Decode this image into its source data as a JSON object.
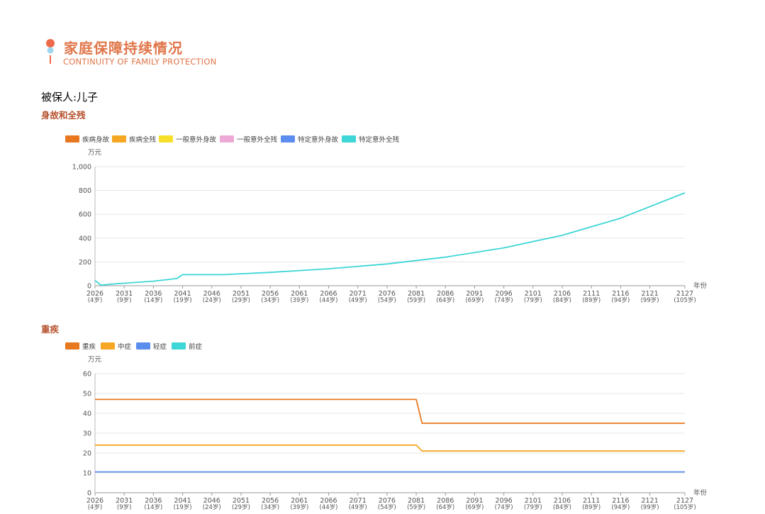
{
  "header": {
    "title_cn": "家庭保障持续情况",
    "title_en": "CONTINUITY OF FAMILY PROTECTION"
  },
  "insured_label": "被保人:儿子",
  "colors": {
    "accent": "#e0764a",
    "section": "#b5502b"
  },
  "chart_data": [
    {
      "type": "line",
      "section_title": "身故和全残",
      "ylabel": "万元",
      "xlabel": "年份",
      "ylim": [
        0,
        1000
      ],
      "yticks": [
        "0",
        "200",
        "400",
        "600",
        "800",
        "1,000"
      ],
      "ytick_values": [
        0,
        200,
        400,
        600,
        800,
        1000
      ],
      "legend_position": "top-left",
      "x_years": [
        2026,
        2031,
        2036,
        2041,
        2046,
        2051,
        2056,
        2061,
        2066,
        2071,
        2076,
        2081,
        2086,
        2091,
        2096,
        2101,
        2106,
        2111,
        2116,
        2121,
        2127
      ],
      "x_ticks": [
        {
          "year": "2026",
          "age": "(4岁)"
        },
        {
          "year": "2031",
          "age": "(9岁)"
        },
        {
          "year": "2036",
          "age": "(14岁)"
        },
        {
          "year": "2041",
          "age": "(19岁)"
        },
        {
          "year": "2046",
          "age": "(24岁)"
        },
        {
          "year": "2051",
          "age": "(29岁)"
        },
        {
          "year": "2056",
          "age": "(34岁)"
        },
        {
          "year": "2061",
          "age": "(39岁)"
        },
        {
          "year": "2066",
          "age": "(44岁)"
        },
        {
          "year": "2071",
          "age": "(49岁)"
        },
        {
          "year": "2076",
          "age": "(54岁)"
        },
        {
          "year": "2081",
          "age": "(59岁)"
        },
        {
          "year": "2086",
          "age": "(64岁)"
        },
        {
          "year": "2091",
          "age": "(69岁)"
        },
        {
          "year": "2096",
          "age": "(74岁)"
        },
        {
          "year": "2101",
          "age": "(79岁)"
        },
        {
          "year": "2106",
          "age": "(84岁)"
        },
        {
          "year": "2111",
          "age": "(89岁)"
        },
        {
          "year": "2116",
          "age": "(94岁)"
        },
        {
          "year": "2121",
          "age": "(99岁)"
        },
        {
          "year": "2127",
          "age": "(105岁)"
        }
      ],
      "series": [
        {
          "name": "疾病身故",
          "color": "#e8781f",
          "points": []
        },
        {
          "name": "疾病全残",
          "color": "#f5a623",
          "points": []
        },
        {
          "name": "一般意外身故",
          "color": "#f8e02a",
          "points": []
        },
        {
          "name": "一般意外全残",
          "color": "#eeaad6",
          "points": []
        },
        {
          "name": "特定意外身故",
          "color": "#5b8def",
          "points": []
        },
        {
          "name": "特定意外全残",
          "color": "#3ed6d6",
          "points": [
            [
              2026,
              45
            ],
            [
              2027,
              5
            ],
            [
              2030,
              18
            ],
            [
              2036,
              38
            ],
            [
              2040,
              60
            ],
            [
              2041,
              93
            ],
            [
              2046,
              93
            ],
            [
              2048,
              93
            ],
            [
              2056,
              112
            ],
            [
              2066,
              142
            ],
            [
              2076,
              183
            ],
            [
              2086,
              240
            ],
            [
              2096,
              318
            ],
            [
              2106,
              423
            ],
            [
              2116,
              567
            ],
            [
              2127,
              780
            ]
          ]
        }
      ]
    },
    {
      "type": "line",
      "section_title": "重疾",
      "ylabel": "万元",
      "xlabel": "年份",
      "ylim": [
        0,
        60
      ],
      "yticks": [
        "0",
        "10",
        "20",
        "30",
        "40",
        "50",
        "60"
      ],
      "ytick_values": [
        0,
        10,
        20,
        30,
        40,
        50,
        60
      ],
      "legend_position": "top-left",
      "x_years": [
        2026,
        2031,
        2036,
        2041,
        2046,
        2051,
        2056,
        2061,
        2066,
        2071,
        2076,
        2081,
        2086,
        2091,
        2096,
        2101,
        2106,
        2111,
        2116,
        2121,
        2127
      ],
      "x_ticks": [
        {
          "year": "2026",
          "age": "(4岁)"
        },
        {
          "year": "2031",
          "age": "(9岁)"
        },
        {
          "year": "2036",
          "age": "(14岁)"
        },
        {
          "year": "2041",
          "age": "(19岁)"
        },
        {
          "year": "2046",
          "age": "(24岁)"
        },
        {
          "year": "2051",
          "age": "(29岁)"
        },
        {
          "year": "2056",
          "age": "(34岁)"
        },
        {
          "year": "2061",
          "age": "(39岁)"
        },
        {
          "year": "2066",
          "age": "(44岁)"
        },
        {
          "year": "2071",
          "age": "(49岁)"
        },
        {
          "year": "2076",
          "age": "(54岁)"
        },
        {
          "year": "2081",
          "age": "(59岁)"
        },
        {
          "year": "2086",
          "age": "(64岁)"
        },
        {
          "year": "2091",
          "age": "(69岁)"
        },
        {
          "year": "2096",
          "age": "(74岁)"
        },
        {
          "year": "2101",
          "age": "(79岁)"
        },
        {
          "year": "2106",
          "age": "(84岁)"
        },
        {
          "year": "2111",
          "age": "(89岁)"
        },
        {
          "year": "2116",
          "age": "(94岁)"
        },
        {
          "year": "2121",
          "age": "(99岁)"
        },
        {
          "year": "2127",
          "age": "(105岁)"
        }
      ],
      "series": [
        {
          "name": "重疾",
          "color": "#e8781f",
          "points": [
            [
              2026,
              47
            ],
            [
              2081,
              47
            ],
            [
              2082,
              35
            ],
            [
              2127,
              35
            ]
          ]
        },
        {
          "name": "中症",
          "color": "#f5a623",
          "points": [
            [
              2026,
              24
            ],
            [
              2081,
              24
            ],
            [
              2082,
              21
            ],
            [
              2127,
              21
            ]
          ]
        },
        {
          "name": "轻症",
          "color": "#5b8def",
          "points": [
            [
              2026,
              10.5
            ],
            [
              2127,
              10.5
            ]
          ]
        },
        {
          "name": "前症",
          "color": "#3ed6d6",
          "points": []
        }
      ]
    }
  ]
}
